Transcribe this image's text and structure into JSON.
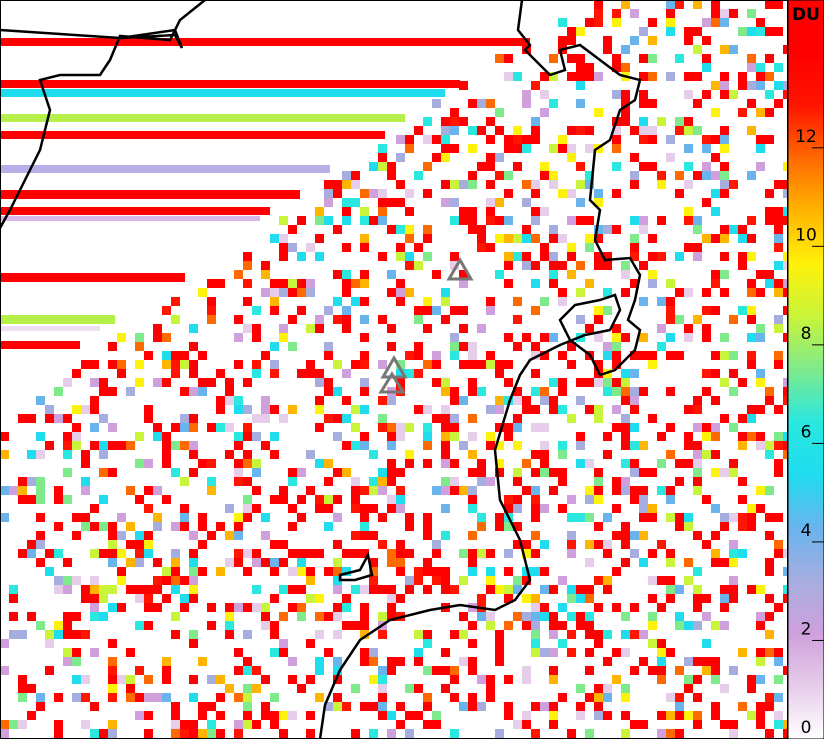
{
  "chart_data": {
    "type": "map",
    "colorbar": {
      "label": "DU",
      "ylim": [
        0,
        15
      ],
      "yticks": [
        0,
        2,
        4,
        6,
        8,
        10,
        12
      ],
      "colors": [
        "#ffffff",
        "#e6cdea",
        "#cfa0dc",
        "#a6aee0",
        "#6ab4ee",
        "#1fdcef",
        "#2ae8e0",
        "#7eea8c",
        "#c8f43a",
        "#fff20a",
        "#ffb400",
        "#ff6a00",
        "#ff1500",
        "#ff0000",
        "#ff0000"
      ]
    }
  }
}
